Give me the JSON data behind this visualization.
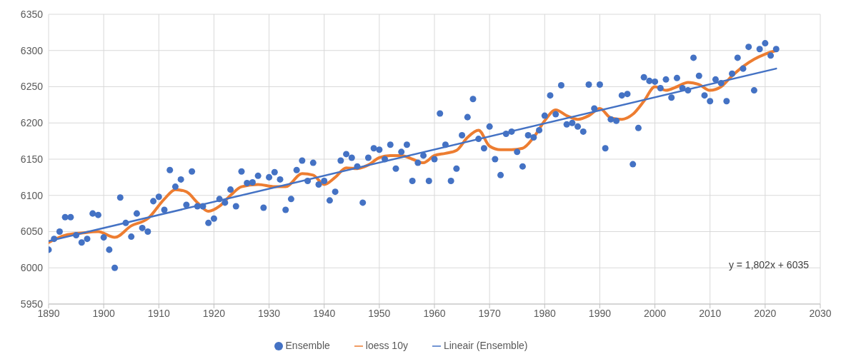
{
  "chart_data": {
    "type": "scatter",
    "xlim": [
      1890,
      2030
    ],
    "xticks": [
      1890,
      1900,
      1910,
      1920,
      1930,
      1940,
      1950,
      1960,
      1970,
      1980,
      1990,
      2000,
      2010,
      2020,
      2030
    ],
    "ylim": [
      5950,
      6350
    ],
    "yticks": [
      5950,
      6000,
      6050,
      6100,
      6150,
      6200,
      6250,
      6300,
      6350
    ],
    "grid": true,
    "legend": "bottom",
    "annotations": [
      "y = 1,802x + 6035"
    ],
    "series": [
      {
        "name": "Ensemble",
        "marker": "circle",
        "color": "#4472c4",
        "x": [
          1890,
          1891,
          1892,
          1893,
          1894,
          1895,
          1896,
          1897,
          1898,
          1899,
          1900,
          1901,
          1902,
          1903,
          1904,
          1905,
          1906,
          1907,
          1908,
          1909,
          1910,
          1911,
          1912,
          1913,
          1914,
          1915,
          1916,
          1917,
          1918,
          1919,
          1920,
          1921,
          1922,
          1923,
          1924,
          1925,
          1926,
          1927,
          1928,
          1929,
          1930,
          1931,
          1932,
          1933,
          1934,
          1935,
          1936,
          1937,
          1938,
          1939,
          1940,
          1941,
          1942,
          1943,
          1944,
          1945,
          1946,
          1947,
          1948,
          1949,
          1950,
          1951,
          1952,
          1953,
          1954,
          1955,
          1956,
          1957,
          1958,
          1959,
          1960,
          1961,
          1962,
          1963,
          1964,
          1965,
          1966,
          1967,
          1968,
          1969,
          1970,
          1971,
          1972,
          1973,
          1974,
          1975,
          1976,
          1977,
          1978,
          1979,
          1980,
          1981,
          1982,
          1983,
          1984,
          1985,
          1986,
          1987,
          1988,
          1989,
          1990,
          1991,
          1992,
          1993,
          1994,
          1995,
          1996,
          1997,
          1998,
          1999,
          2000,
          2001,
          2002,
          2003,
          2004,
          2005,
          2006,
          2007,
          2008,
          2009,
          2010,
          2011,
          2012,
          2013,
          2014,
          2015,
          2016,
          2017,
          2018,
          2019,
          2020,
          2021,
          2022
        ],
        "values": [
          6025,
          6040,
          6050,
          6070,
          6070,
          6045,
          6035,
          6040,
          6075,
          6073,
          6042,
          6025,
          6000,
          6097,
          6062,
          6043,
          6075,
          6055,
          6050,
          6092,
          6098,
          6080,
          6135,
          6112,
          6122,
          6087,
          6133,
          6085,
          6085,
          6062,
          6068,
          6095,
          6090,
          6108,
          6085,
          6133,
          6117,
          6118,
          6127,
          6083,
          6125,
          6132,
          6122,
          6080,
          6095,
          6135,
          6148,
          6120,
          6145,
          6115,
          6120,
          6093,
          6105,
          6148,
          6157,
          6152,
          6140,
          6090,
          6152,
          6165,
          6163,
          6150,
          6170,
          6137,
          6160,
          6170,
          6120,
          6145,
          6155,
          6120,
          6150,
          6213,
          6170,
          6120,
          6137,
          6183,
          6208,
          6233,
          6178,
          6165,
          6195,
          6150,
          6128,
          6185,
          6188,
          6160,
          6140,
          6183,
          6180,
          6190,
          6210,
          6238,
          6212,
          6252,
          6198,
          6200,
          6195,
          6188,
          6253,
          6220,
          6253,
          6165,
          6205,
          6203,
          6238,
          6240,
          6143,
          6193,
          6263,
          6258,
          6257,
          6248,
          6260,
          6235,
          6262,
          6248,
          6245,
          6290,
          6265,
          6238,
          6230,
          6260,
          6255,
          6230,
          6268,
          6290,
          6275,
          6305,
          6245,
          6302,
          6310,
          6293,
          6302
        ]
      },
      {
        "name": "loess 10y",
        "type": "line",
        "marker": "none",
        "line_style": "solid",
        "color": "#ed7d31",
        "x": [
          1890,
          1893,
          1896,
          1899,
          1902,
          1905,
          1908,
          1911,
          1913,
          1915,
          1917,
          1919,
          1921,
          1923,
          1925,
          1928,
          1931,
          1933,
          1936,
          1938,
          1940,
          1942,
          1944,
          1946,
          1948,
          1950,
          1952,
          1954,
          1956,
          1958,
          1960,
          1962,
          1964,
          1966,
          1968,
          1970,
          1972,
          1974,
          1976,
          1978,
          1980,
          1982,
          1984,
          1986,
          1988,
          1990,
          1992,
          1994,
          1996,
          1998,
          2000,
          2002,
          2004,
          2006,
          2008,
          2010,
          2012,
          2014,
          2016,
          2018,
          2020,
          2022
        ],
        "values": [
          6035,
          6045,
          6048,
          6050,
          6042,
          6058,
          6068,
          6095,
          6108,
          6105,
          6090,
          6078,
          6085,
          6100,
          6112,
          6115,
          6112,
          6112,
          6130,
          6128,
          6115,
          6125,
          6138,
          6137,
          6142,
          6152,
          6155,
          6155,
          6150,
          6145,
          6155,
          6158,
          6162,
          6180,
          6190,
          6168,
          6163,
          6163,
          6165,
          6180,
          6203,
          6218,
          6210,
          6205,
          6210,
          6220,
          6207,
          6205,
          6212,
          6230,
          6250,
          6245,
          6250,
          6256,
          6253,
          6245,
          6250,
          6265,
          6278,
          6288,
          6295,
          6300
        ]
      },
      {
        "name": "Lineair (Ensemble)",
        "type": "line",
        "marker": "none",
        "line_style": "solid",
        "color": "#4472c4",
        "x": [
          1890,
          2022
        ],
        "values": [
          6037,
          6275
        ]
      }
    ]
  }
}
